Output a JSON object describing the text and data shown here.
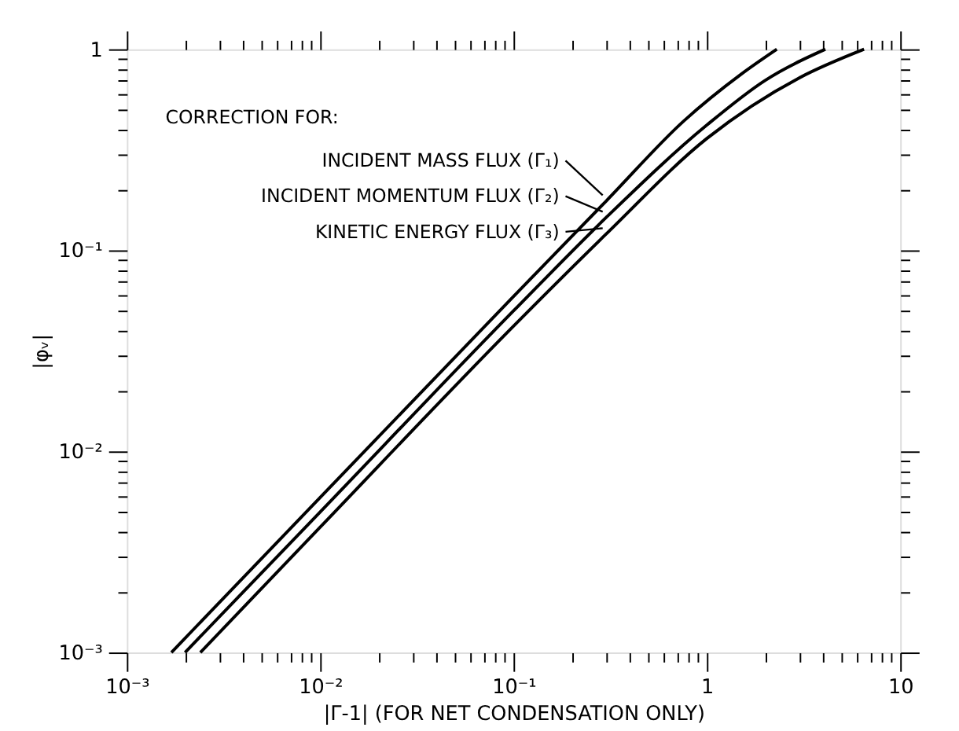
{
  "chart_data": {
    "type": "line",
    "legend_title": "CORRECTION FOR:",
    "xlabel": "|Γ-1| (FOR NET CONDENSATION ONLY)",
    "ylabel": "|φᵥ|",
    "log": "xy",
    "grid": false,
    "legend": "top left",
    "marker": "none",
    "line_style": "solid",
    "xlim": [
      0.001,
      10
    ],
    "ylim": [
      0.001,
      1
    ],
    "xticks": [
      {
        "value": 0.001,
        "label": "10⁻³"
      },
      {
        "value": 0.002,
        "label": null
      },
      {
        "value": 0.003,
        "label": null
      },
      {
        "value": 0.004,
        "label": null
      },
      {
        "value": 0.005,
        "label": null
      },
      {
        "value": 0.006,
        "label": null
      },
      {
        "value": 0.007,
        "label": null
      },
      {
        "value": 0.008,
        "label": null
      },
      {
        "value": 0.009,
        "label": null
      },
      {
        "value": 0.01,
        "label": "10⁻²"
      },
      {
        "value": 0.02,
        "label": null
      },
      {
        "value": 0.03,
        "label": null
      },
      {
        "value": 0.04,
        "label": null
      },
      {
        "value": 0.05,
        "label": null
      },
      {
        "value": 0.06,
        "label": null
      },
      {
        "value": 0.07,
        "label": null
      },
      {
        "value": 0.08,
        "label": null
      },
      {
        "value": 0.09,
        "label": null
      },
      {
        "value": 0.1,
        "label": "10⁻¹"
      },
      {
        "value": 0.2,
        "label": null
      },
      {
        "value": 0.3,
        "label": null
      },
      {
        "value": 0.4,
        "label": null
      },
      {
        "value": 0.5,
        "label": null
      },
      {
        "value": 0.6,
        "label": null
      },
      {
        "value": 0.7,
        "label": null
      },
      {
        "value": 0.8,
        "label": null
      },
      {
        "value": 0.9,
        "label": null
      },
      1,
      {
        "value": 2,
        "label": null
      },
      {
        "value": 3,
        "label": null
      },
      {
        "value": 4,
        "label": null
      },
      {
        "value": 5,
        "label": null
      },
      {
        "value": 6,
        "label": null
      },
      {
        "value": 7,
        "label": null
      },
      {
        "value": 8,
        "label": null
      },
      {
        "value": 9,
        "label": null
      },
      10
    ],
    "yticks": [
      {
        "value": 0.001,
        "label": "10⁻³"
      },
      {
        "value": 0.002,
        "label": null
      },
      {
        "value": 0.003,
        "label": null
      },
      {
        "value": 0.004,
        "label": null
      },
      {
        "value": 0.005,
        "label": null
      },
      {
        "value": 0.006,
        "label": null
      },
      {
        "value": 0.007,
        "label": null
      },
      {
        "value": 0.008,
        "label": null
      },
      {
        "value": 0.009,
        "label": null
      },
      {
        "value": 0.01,
        "label": "10⁻²"
      },
      {
        "value": 0.02,
        "label": null
      },
      {
        "value": 0.03,
        "label": null
      },
      {
        "value": 0.04,
        "label": null
      },
      {
        "value": 0.05,
        "label": null
      },
      {
        "value": 0.06,
        "label": null
      },
      {
        "value": 0.07,
        "label": null
      },
      {
        "value": 0.08,
        "label": null
      },
      {
        "value": 0.09,
        "label": null
      },
      {
        "value": 0.1,
        "label": "10⁻¹"
      },
      {
        "value": 0.2,
        "label": null
      },
      {
        "value": 0.3,
        "label": null
      },
      {
        "value": 0.4,
        "label": null
      },
      {
        "value": 0.5,
        "label": null
      },
      {
        "value": 0.6,
        "label": null
      },
      {
        "value": 0.7,
        "label": null
      },
      {
        "value": 0.8,
        "label": null
      },
      {
        "value": 0.9,
        "label": null
      },
      1
    ],
    "series": [
      {
        "name": "INCIDENT MASS FLUX (Γ₁)",
        "color": "#000000",
        "x": [
          0.0017,
          0.01,
          0.1,
          0.3,
          0.76,
          1.5,
          2.3
        ],
        "values": [
          0.001,
          0.0059,
          0.059,
          0.175,
          0.44,
          0.75,
          1
        ]
      },
      {
        "name": "INCIDENT MOMENTUM FLUX (Γ₂)",
        "color": "#000000",
        "x": [
          0.002,
          0.01,
          0.1,
          0.3,
          1,
          2,
          4.1
        ],
        "values": [
          0.001,
          0.005,
          0.05,
          0.145,
          0.42,
          0.7,
          1
        ]
      },
      {
        "name": "KINETIC ENERGY FLUX (Γ₃)",
        "color": "#000000",
        "x": [
          0.0024,
          0.01,
          0.1,
          0.3,
          1,
          3,
          6.5
        ],
        "values": [
          0.001,
          0.0042,
          0.042,
          0.12,
          0.36,
          0.72,
          1
        ]
      }
    ]
  }
}
